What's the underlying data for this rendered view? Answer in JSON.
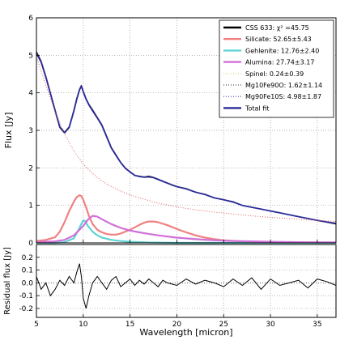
{
  "chart_data": [
    {
      "type": "line",
      "xlabel": "",
      "ylabel": "Flux [Jy]",
      "xlim": [
        5,
        37
      ],
      "ylim": [
        0,
        6
      ],
      "xticks": [
        5,
        10,
        15,
        20,
        25,
        30,
        35
      ],
      "yticks": [
        0,
        1,
        2,
        3,
        4,
        5,
        6
      ],
      "grid": true,
      "legend_position": "top-right",
      "legend": [
        {
          "label": "CSS 633: χ² =45.75",
          "color": "#000000",
          "style": "solid"
        },
        {
          "label": "Silicate: 52.65±5.43",
          "color": "#f08080",
          "style": "solid"
        },
        {
          "label": "Gehlenite: 12.76±2.40",
          "color": "#5fd3d3",
          "style": "solid"
        },
        {
          "label": "Alumina: 27.74±3.17",
          "color": "#d070d8",
          "style": "solid"
        },
        {
          "label": "Spinel: 0.24±0.39",
          "color": "#d8d870",
          "style": "dotted"
        },
        {
          "label": "Mg10Fe90O: 1.62±1.14",
          "color": "#555555",
          "style": "dotted"
        },
        {
          "label": "Mg90Fe10S: 4.98±1.87",
          "color": "#4444cc",
          "style": "dotted"
        },
        {
          "label": "Total fit",
          "color": "#2b2b9a",
          "style": "solid"
        }
      ],
      "series": [
        {
          "name": "CSS 633",
          "color": "#000000",
          "x": [
            5,
            5.5,
            6,
            6.5,
            7,
            7.5,
            8,
            8.5,
            9,
            9.3,
            9.6,
            9.8,
            10,
            10.3,
            10.6,
            11,
            11.5,
            12,
            12.5,
            13,
            13.5,
            14,
            14.5,
            15,
            15.5,
            16,
            16.5,
            17,
            17.5,
            18,
            18.5,
            19,
            19.5,
            20,
            21,
            22,
            23,
            24,
            25,
            26,
            27,
            28,
            29,
            30,
            31,
            32,
            33,
            34,
            35,
            36,
            37
          ],
          "y": [
            5.1,
            4.85,
            4.45,
            4.0,
            3.55,
            3.1,
            2.95,
            3.1,
            3.55,
            3.85,
            4.1,
            4.2,
            4.05,
            3.85,
            3.7,
            3.55,
            3.35,
            3.15,
            2.85,
            2.55,
            2.35,
            2.15,
            2.0,
            1.9,
            1.8,
            1.78,
            1.76,
            1.78,
            1.75,
            1.7,
            1.65,
            1.6,
            1.55,
            1.5,
            1.45,
            1.35,
            1.3,
            1.2,
            1.15,
            1.1,
            1.0,
            0.95,
            0.9,
            0.85,
            0.8,
            0.75,
            0.7,
            0.65,
            0.6,
            0.55,
            0.5
          ]
        },
        {
          "name": "Total fit",
          "color": "#2b2b9a",
          "x": [
            5,
            5.5,
            6,
            6.5,
            7,
            7.5,
            8,
            8.5,
            9,
            9.3,
            9.6,
            9.8,
            10,
            10.3,
            10.6,
            11,
            11.5,
            12,
            12.5,
            13,
            13.5,
            14,
            14.5,
            15,
            15.5,
            16,
            16.5,
            17,
            17.5,
            18,
            18.5,
            19,
            19.5,
            20,
            21,
            22,
            23,
            24,
            25,
            26,
            27,
            28,
            29,
            30,
            31,
            32,
            33,
            34,
            35,
            36,
            37
          ],
          "y": [
            5.05,
            4.82,
            4.42,
            3.98,
            3.52,
            3.08,
            2.93,
            3.08,
            3.52,
            3.82,
            4.08,
            4.18,
            4.03,
            3.83,
            3.68,
            3.52,
            3.33,
            3.13,
            2.83,
            2.53,
            2.33,
            2.14,
            1.99,
            1.89,
            1.8,
            1.77,
            1.75,
            1.76,
            1.74,
            1.69,
            1.64,
            1.59,
            1.54,
            1.5,
            1.44,
            1.35,
            1.29,
            1.2,
            1.15,
            1.09,
            1.0,
            0.95,
            0.9,
            0.85,
            0.8,
            0.75,
            0.7,
            0.65,
            0.6,
            0.56,
            0.52
          ]
        },
        {
          "name": "Silicate",
          "color": "#f08080",
          "x": [
            5,
            6,
            7,
            7.5,
            8,
            8.5,
            9,
            9.3,
            9.6,
            9.8,
            10,
            10.3,
            10.6,
            11,
            11.5,
            12,
            12.5,
            13,
            13.5,
            14,
            15,
            16,
            16.5,
            17,
            17.5,
            18,
            19,
            20,
            21,
            22,
            23,
            24,
            25,
            27,
            30,
            33,
            37
          ],
          "y": [
            0.05,
            0.08,
            0.15,
            0.3,
            0.55,
            0.85,
            1.1,
            1.22,
            1.27,
            1.25,
            1.15,
            0.95,
            0.72,
            0.5,
            0.35,
            0.28,
            0.24,
            0.22,
            0.22,
            0.25,
            0.35,
            0.48,
            0.54,
            0.57,
            0.57,
            0.55,
            0.47,
            0.37,
            0.28,
            0.2,
            0.14,
            0.1,
            0.07,
            0.04,
            0.02,
            0.01,
            0.01
          ]
        },
        {
          "name": "Gehlenite",
          "color": "#5fd3d3",
          "x": [
            5,
            7,
            8,
            9,
            9.5,
            10,
            10.2,
            10.5,
            11,
            11.5,
            12,
            13,
            14,
            15,
            17,
            20,
            25,
            30,
            37
          ],
          "y": [
            0.0,
            0.0,
            0.02,
            0.12,
            0.35,
            0.6,
            0.58,
            0.45,
            0.3,
            0.2,
            0.14,
            0.08,
            0.05,
            0.03,
            0.01,
            0.0,
            0.0,
            0.0,
            0.0
          ]
        },
        {
          "name": "Alumina",
          "color": "#d070d8",
          "x": [
            5,
            7,
            8,
            9,
            10,
            10.5,
            11,
            11.5,
            12,
            13,
            14,
            15,
            16,
            17,
            18,
            19,
            20,
            22,
            24,
            26,
            28,
            30,
            33,
            37
          ],
          "y": [
            0.02,
            0.04,
            0.08,
            0.2,
            0.45,
            0.62,
            0.72,
            0.7,
            0.63,
            0.5,
            0.4,
            0.33,
            0.28,
            0.24,
            0.2,
            0.17,
            0.14,
            0.1,
            0.07,
            0.05,
            0.04,
            0.03,
            0.02,
            0.01
          ]
        },
        {
          "name": "Continuum",
          "color": "#e06060",
          "style": "dotted",
          "x": [
            5,
            6,
            7,
            8,
            9,
            10,
            11,
            12,
            13,
            14,
            15,
            16,
            18,
            20,
            22,
            24,
            26,
            28,
            30,
            33,
            37
          ],
          "y": [
            4.95,
            4.2,
            3.5,
            2.9,
            2.45,
            2.1,
            1.85,
            1.65,
            1.5,
            1.38,
            1.28,
            1.2,
            1.06,
            0.96,
            0.88,
            0.82,
            0.77,
            0.72,
            0.68,
            0.63,
            0.57
          ]
        }
      ]
    },
    {
      "type": "line",
      "xlabel": "Wavelength [micron]",
      "ylabel": "Residual flux [Jy]",
      "xlim": [
        5,
        37
      ],
      "ylim": [
        -0.27,
        0.3
      ],
      "xticks": [
        5,
        10,
        15,
        20,
        25,
        30,
        35
      ],
      "yticks": [
        -0.2,
        -0.1,
        0.0,
        0.1,
        0.2
      ],
      "grid": true,
      "series": [
        {
          "name": "Residual",
          "color": "#000000",
          "x": [
            5,
            5.5,
            6,
            6.5,
            7,
            7.5,
            8,
            8.5,
            9,
            9.3,
            9.6,
            9.8,
            10,
            10.3,
            10.6,
            11,
            11.5,
            12,
            12.5,
            13,
            13.5,
            14,
            14.5,
            15,
            15.5,
            16,
            16.5,
            17,
            17.5,
            18,
            18.5,
            19,
            20,
            21,
            22,
            23,
            24,
            25,
            26,
            27,
            28,
            29,
            30,
            31,
            32,
            33,
            34,
            35,
            36,
            37
          ],
          "y": [
            0.05,
            -0.05,
            0.0,
            -0.1,
            -0.05,
            0.02,
            -0.02,
            0.05,
            0.0,
            0.08,
            0.15,
            0.05,
            -0.12,
            -0.2,
            -0.1,
            0.0,
            0.05,
            0.0,
            -0.05,
            0.02,
            0.05,
            -0.03,
            0.0,
            0.03,
            -0.02,
            0.02,
            -0.01,
            0.03,
            0.0,
            -0.03,
            0.02,
            0.0,
            -0.02,
            0.03,
            -0.01,
            0.02,
            0.0,
            -0.03,
            0.03,
            -0.02,
            0.04,
            -0.05,
            0.03,
            -0.02,
            0.0,
            0.02,
            -0.04,
            0.03,
            0.01,
            -0.02
          ]
        }
      ]
    }
  ]
}
